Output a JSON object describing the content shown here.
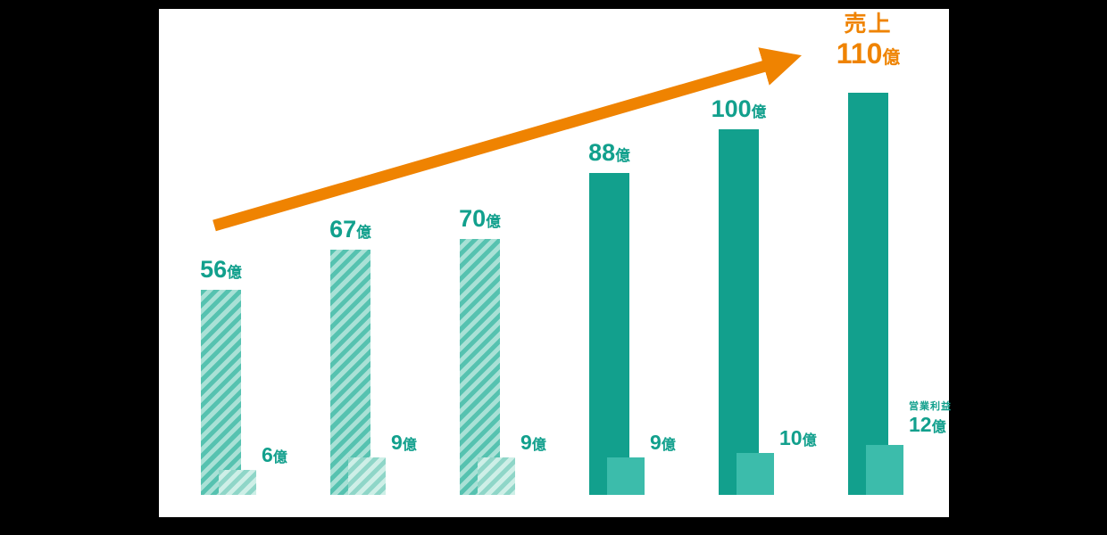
{
  "chart_data": {
    "type": "bar",
    "unit": "億",
    "series": [
      {
        "name": "売上",
        "values": [
          56,
          67,
          70,
          88,
          100,
          110
        ]
      },
      {
        "name": "営業利益",
        "values": [
          6,
          9,
          9,
          9,
          10,
          12
        ]
      }
    ],
    "hatched_indices": [
      0,
      1,
      2
    ],
    "highlight_index": 5,
    "annotations": {
      "final_sales_word": "売上",
      "profit_series_word": "営業利益",
      "trend_arrow": "upward diagonal arrow from above first bar to top right"
    },
    "grid": false,
    "legend_position": "none",
    "ylim": [
      0,
      120
    ],
    "colors": {
      "revenue_solid": "#12A08D",
      "revenue_hatch_dark": "#56C2B0",
      "revenue_hatch_light": "#A9E1D6",
      "profit_solid": "#3CBCAB",
      "profit_hatch_dark": "#8FD6C8",
      "profit_hatch_light": "#CEEFE7",
      "label_teal": "#12A08D",
      "accent_orange": "#EF8301",
      "panel_bg": "#FFFFFF",
      "outer_bg": "#000000"
    }
  }
}
